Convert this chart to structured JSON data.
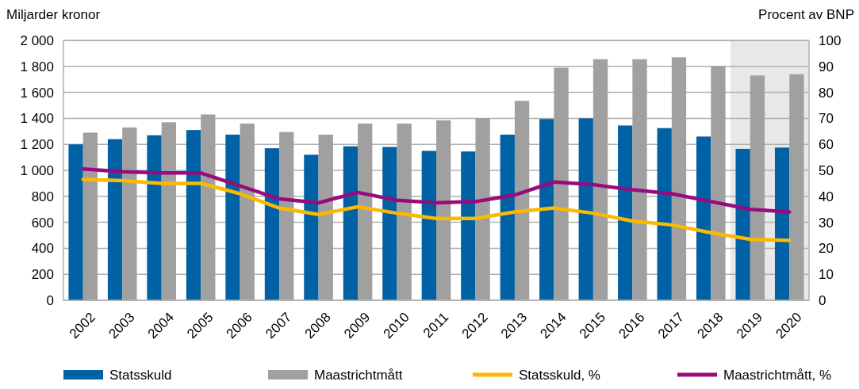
{
  "chart_data": {
    "type": "bar",
    "ylabel": "Miljarder kronor",
    "y2label": "Procent av BNP",
    "categories": [
      "2002",
      "2003",
      "2004",
      "2005",
      "2006",
      "2007",
      "2008",
      "2009",
      "2010",
      "2011",
      "2012",
      "2013",
      "2014",
      "2015",
      "2016",
      "2017",
      "2018",
      "2019",
      "2020"
    ],
    "series": [
      {
        "name": "Statsskuld",
        "color": "#0061a4",
        "values": [
          1200,
          1240,
          1270,
          1310,
          1275,
          1170,
          1120,
          1185,
          1180,
          1150,
          1145,
          1275,
          1395,
          1400,
          1345,
          1325,
          1260,
          1165,
          1175
        ]
      },
      {
        "name": "Maastrichtmått",
        "color": "#a0a0a0",
        "values": [
          1290,
          1330,
          1370,
          1430,
          1360,
          1295,
          1275,
          1360,
          1360,
          1385,
          1400,
          1535,
          1790,
          1855,
          1855,
          1870,
          1800,
          1730,
          1740
        ]
      },
      {
        "name": "Statsskuld, %",
        "type": "line",
        "axis": "y2",
        "color": "#fbb900",
        "values": [
          46.5,
          46,
          45,
          45,
          41,
          35.5,
          33,
          36,
          33.5,
          31.5,
          31.5,
          34,
          35.5,
          33.5,
          30.5,
          29,
          26,
          23.5,
          23
        ]
      },
      {
        "name": "Maastrichtmått, %",
        "type": "line",
        "axis": "y2",
        "color": "#9a0a7e",
        "values": [
          50.5,
          49.5,
          49,
          49,
          44,
          39,
          37.5,
          41.5,
          38.5,
          37.5,
          38,
          40.5,
          45.5,
          44.5,
          42.5,
          41,
          38,
          35,
          34
        ]
      }
    ],
    "ylim": [
      0,
      2000
    ],
    "yticks": [
      0,
      200,
      400,
      600,
      800,
      {
        "value": 1000,
        "label": "1 000"
      },
      {
        "value": 1200,
        "label": "1 200"
      },
      {
        "value": 1400,
        "label": "1 400"
      },
      {
        "value": 1600,
        "label": "1 600"
      },
      {
        "value": 1800,
        "label": "1 800"
      },
      {
        "value": 2000,
        "label": "2 000"
      }
    ],
    "y2lim": [
      0,
      100
    ],
    "y2ticks": [
      0,
      10,
      20,
      30,
      40,
      50,
      60,
      70,
      80,
      90,
      100
    ],
    "bands": [
      {
        "axis": "x",
        "from": "2019",
        "to": "2020",
        "label": null,
        "color": "#e8e8e8"
      }
    ],
    "grid": "y",
    "legend": "bottom",
    "marker": "none",
    "line_style": "solid"
  }
}
